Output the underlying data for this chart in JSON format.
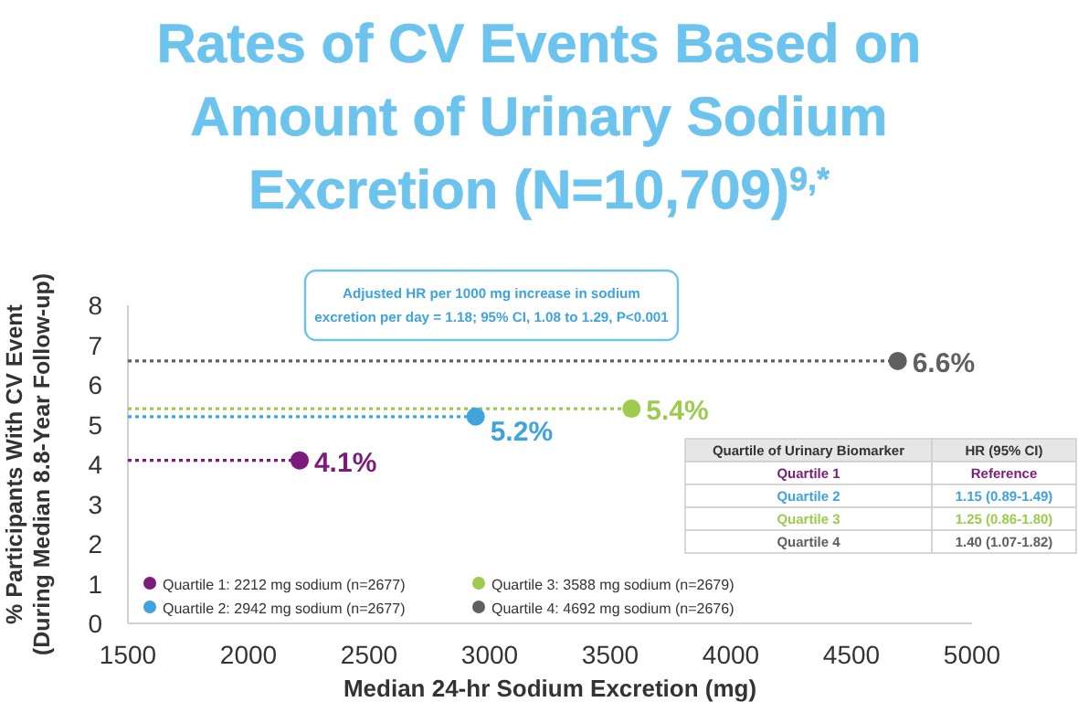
{
  "chart_data": {
    "type": "scatter",
    "title": "Rates of CV Events Based on Amount of Urinary Sodium Excretion (N=10,709)$^{9,*}$",
    "xlabel": "Median 24-hr Sodium Excretion (mg)",
    "ylabel": "% Participants With CV Event\n(During Median 8.8-Year Follow-up)",
    "xlim": [
      1500,
      5000
    ],
    "xticks": [
      1500,
      2000,
      2500,
      3000,
      3500,
      4000,
      4500,
      5000
    ],
    "ylim": [
      0,
      8
    ],
    "yticks": [
      0,
      1,
      2,
      3,
      4,
      5,
      6,
      7,
      8
    ],
    "grid": false,
    "legend": "bottom left",
    "marker": "circle",
    "series": [
      {
        "type": "line",
        "color": "#7b1c7b",
        "x": [
          1500,
          2212
        ],
        "values": [
          4.1,
          4.1
        ],
        "line_style": "dotted",
        "marker": "none"
      },
      {
        "type": "line",
        "color": "#3fa3dc",
        "x": [
          1500,
          2942
        ],
        "values": [
          5.2,
          5.2
        ],
        "line_style": "dotted",
        "marker": "none"
      },
      {
        "type": "line",
        "color": "#9ccb4e",
        "x": [
          1500,
          3588
        ],
        "values": [
          5.4,
          5.4
        ],
        "line_style": "dotted",
        "marker": "none"
      },
      {
        "type": "line",
        "color": "#5f5f5f",
        "x": [
          1500,
          4692
        ],
        "values": [
          6.6,
          6.6
        ],
        "line_style": "dotted",
        "marker": "none"
      },
      {
        "name": "Quartile 1: 2212 mg sodium (n=2677)",
        "color": "#7b1c7b",
        "x": [
          2212
        ],
        "values": [
          4.1
        ],
        "value_labels": [
          "4.1%"
        ]
      },
      {
        "name": "Quartile 2: 2942 mg sodium (n=2677)",
        "color": "#3fa3dc",
        "x": [
          2942
        ],
        "values": [
          5.2
        ],
        "value_labels": [
          "5.2%"
        ]
      },
      {
        "name": "Quartile 3: 3588 mg sodium (n=2679)",
        "color": "#9ccb4e",
        "x": [
          3588
        ],
        "values": [
          5.4
        ],
        "value_labels": [
          "5.4%"
        ]
      },
      {
        "name": "Quartile 4: 4692 mg sodium (n=2676)",
        "color": "#5f5f5f",
        "x": [
          4692
        ],
        "values": [
          6.6
        ],
        "value_labels": [
          "6.6%"
        ]
      }
    ],
    "annotations": [
      "Adjusted HR per 1000 mg increase in sodium\nexcretion per day = 1.18; 95% CI, 1.08 to 1.29, P<0.001",
      "Quartile of Urinary Biomarker",
      "HR (95% CI)",
      "Quartile 1",
      "Reference",
      "Quartile 2",
      "1.15 (0.89-1.49)",
      "Quartile 3",
      "1.25 (0.86-1.80)",
      "Quartile 4",
      "1.40 (1.07-1.82)"
    ]
  }
}
